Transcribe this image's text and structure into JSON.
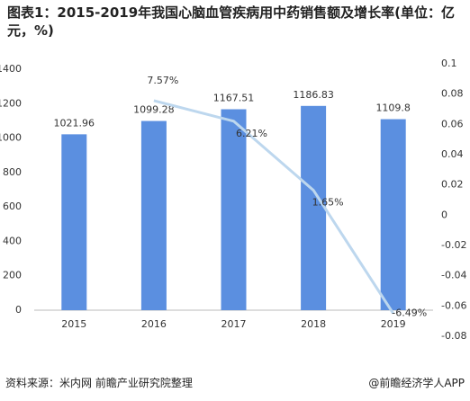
{
  "chart_data": {
    "type": "bar-line",
    "title": "图表1：2015-2019年我国心脑血管疾病用中药销售额及增长率(单位：亿元，%)",
    "categories": [
      "2015",
      "2016",
      "2017",
      "2018",
      "2019"
    ],
    "series": [
      {
        "type": "bar",
        "color": "#5b8fe0",
        "values": [
          1021.96,
          1099.28,
          1167.51,
          1186.83,
          1109.8
        ]
      },
      {
        "type": "line",
        "axis": "y2",
        "color": "#bdd7ee",
        "values": [
          null,
          0.0757,
          0.0621,
          0.0165,
          -0.0649
        ],
        "value_labels": [
          null,
          "7.57%",
          "6.21%",
          "1.65%",
          "-6.49%"
        ]
      }
    ],
    "ylim": [
      0,
      1400
    ],
    "yticks": [
      0,
      200,
      400,
      600,
      800,
      1000,
      1200,
      1400
    ],
    "y2lim": [
      -0.08,
      0.1
    ],
    "y2ticks": [
      -0.08,
      -0.06,
      -0.04,
      -0.02,
      0,
      0.02,
      0.04,
      0.06,
      0.08,
      0.1
    ],
    "source": "资料来源：米内网 前瞻产业研究院整理",
    "credit": "@前瞻经济学人APP"
  }
}
